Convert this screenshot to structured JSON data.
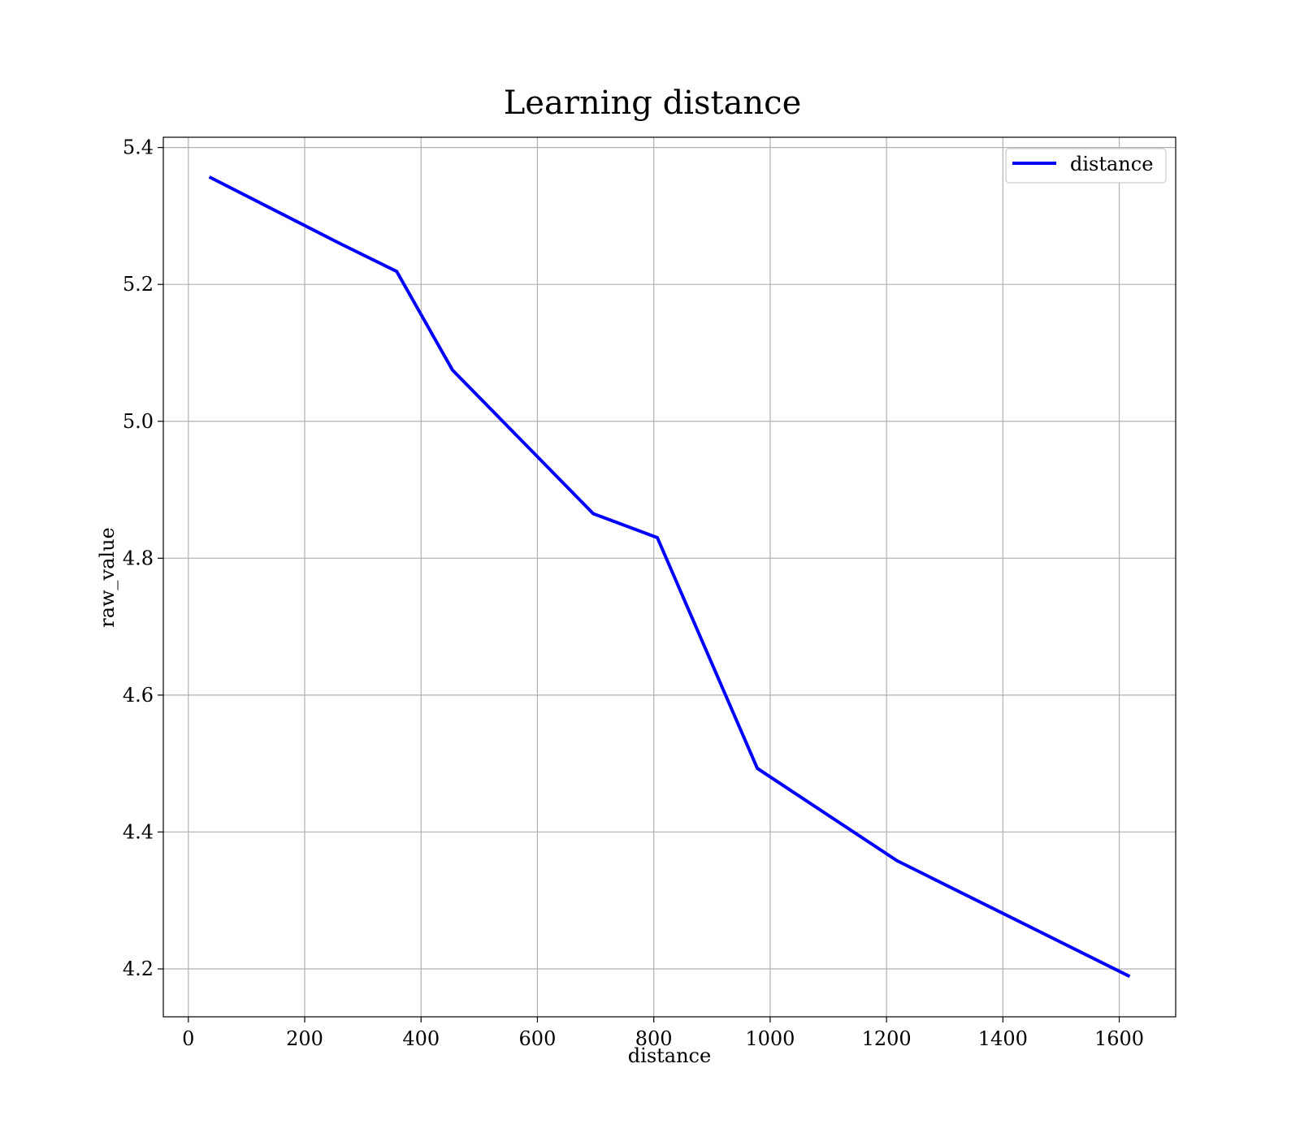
{
  "chart_data": {
    "type": "line",
    "title": "Learning distance",
    "xlabel": "distance",
    "ylabel": "raw_value",
    "xlim": [
      -43,
      1697
    ],
    "ylim": [
      4.13,
      5.415
    ],
    "xticks": [
      0,
      200,
      400,
      600,
      800,
      1000,
      1200,
      1400,
      1600
    ],
    "yticks": [
      4.2,
      4.4,
      4.6,
      4.8,
      5.0,
      5.2,
      5.4
    ],
    "xtick_labels": [
      "0",
      "200",
      "400",
      "600",
      "800",
      "1000",
      "1200",
      "1400",
      "1600"
    ],
    "ytick_labels": [
      "4.2",
      "4.4",
      "4.6",
      "4.8",
      "5.0",
      "5.2",
      "5.4"
    ],
    "grid": true,
    "legend_position": "top-right",
    "series": [
      {
        "name": "distance",
        "color": "#0000ff",
        "x": [
          36,
          260,
          358,
          454,
          696,
          806,
          978,
          1218,
          1618
        ],
        "y": [
          5.357,
          5.26,
          5.219,
          5.075,
          4.865,
          4.83,
          4.493,
          4.358,
          4.189
        ]
      }
    ]
  }
}
